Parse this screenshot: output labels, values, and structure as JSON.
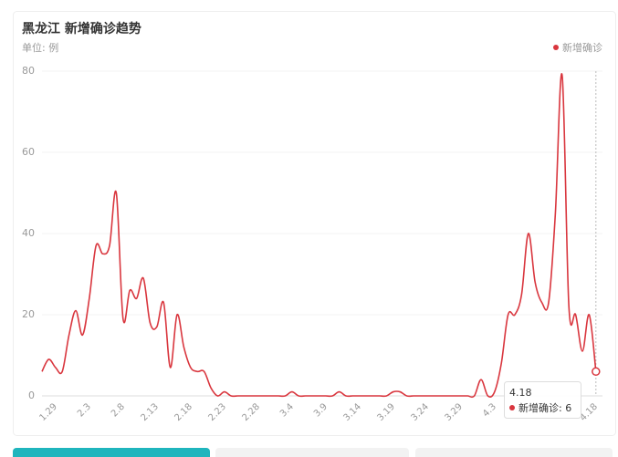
{
  "chart_data": {
    "type": "line",
    "title": "黑龙江 新增确诊趋势",
    "subtitle": "单位: 例",
    "categories": [
      null,
      null,
      "1.29",
      null,
      null,
      null,
      null,
      "2.3",
      null,
      null,
      null,
      null,
      "2.8",
      null,
      null,
      null,
      null,
      "2.13",
      null,
      null,
      null,
      null,
      "2.18",
      null,
      null,
      null,
      null,
      "2.23",
      null,
      null,
      null,
      null,
      "2.28",
      null,
      null,
      null,
      null,
      "3.4",
      null,
      null,
      null,
      null,
      "3.9",
      null,
      null,
      null,
      null,
      "3.14",
      null,
      null,
      null,
      null,
      "3.19",
      null,
      null,
      null,
      null,
      "3.24",
      null,
      null,
      null,
      null,
      "3.29",
      null,
      null,
      null,
      null,
      "4.3",
      null,
      null,
      null,
      null,
      null,
      null,
      null,
      null,
      null,
      null,
      null,
      null,
      null,
      null,
      "4.18"
    ],
    "series": [
      {
        "name": "新增确诊",
        "color": "#d9363e",
        "values": [
          6,
          9,
          7,
          6,
          15,
          21,
          15,
          24,
          37,
          35,
          37,
          50,
          19,
          26,
          24,
          29,
          18,
          17,
          23,
          7,
          20,
          12,
          7,
          6,
          6,
          2,
          0,
          1,
          0,
          0,
          0,
          0,
          0,
          0,
          0,
          0,
          0,
          1,
          0,
          0,
          0,
          0,
          0,
          0,
          1,
          0,
          0,
          0,
          0,
          0,
          0,
          0,
          1,
          1,
          0,
          0,
          0,
          0,
          0,
          0,
          0,
          0,
          0,
          0,
          0,
          4,
          0,
          1,
          8,
          20,
          20,
          25,
          40,
          28,
          23,
          23,
          45,
          79,
          22,
          20,
          11,
          20,
          6
        ]
      }
    ],
    "ylim": [
      0,
      80
    ],
    "yticks": [
      0,
      20,
      40,
      60,
      80
    ],
    "grid": true,
    "legend": "top-right",
    "tooltip": {
      "date": "4.18",
      "label": "新增确诊: 6"
    }
  }
}
